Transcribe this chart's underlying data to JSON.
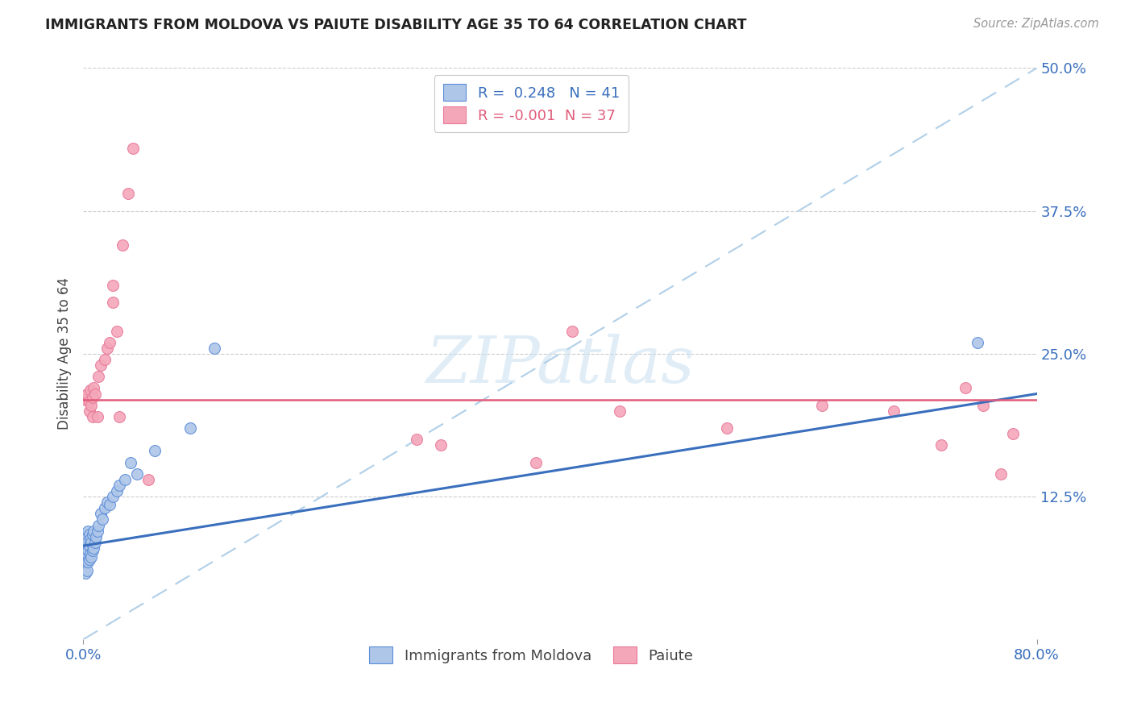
{
  "title": "IMMIGRANTS FROM MOLDOVA VS PAIUTE DISABILITY AGE 35 TO 64 CORRELATION CHART",
  "source": "Source: ZipAtlas.com",
  "ylabel_label": "Disability Age 35 to 64",
  "xmin": 0.0,
  "xmax": 0.8,
  "ymin": 0.0,
  "ymax": 0.5,
  "yticks_right": [
    0.0,
    0.125,
    0.25,
    0.375,
    0.5
  ],
  "ytick_right_labels": [
    "",
    "12.5%",
    "25.0%",
    "37.5%",
    "50.0%"
  ],
  "legend_blue_label": "Immigrants from Moldova",
  "legend_pink_label": "Paiute",
  "R_blue": 0.248,
  "N_blue": 41,
  "R_pink": -0.001,
  "N_pink": 37,
  "blue_fill": "#aec6e8",
  "pink_fill": "#f4a7b9",
  "blue_edge": "#5b8dd9",
  "pink_edge": "#e8799a",
  "blue_line_color": "#3a6fbd",
  "pink_line_color": "#e05c7a",
  "dashed_line_color": "#b0cfe8",
  "watermark": "ZIPatlas",
  "blue_x": [
    0.001,
    0.001,
    0.002,
    0.002,
    0.002,
    0.003,
    0.003,
    0.003,
    0.004,
    0.004,
    0.004,
    0.005,
    0.005,
    0.005,
    0.006,
    0.006,
    0.007,
    0.007,
    0.008,
    0.008,
    0.009,
    0.009,
    0.01,
    0.011,
    0.012,
    0.013,
    0.015,
    0.016,
    0.018,
    0.02,
    0.022,
    0.025,
    0.028,
    0.03,
    0.035,
    0.04,
    0.045,
    0.06,
    0.09,
    0.11,
    0.75
  ],
  "blue_y": [
    0.065,
    0.08,
    0.058,
    0.072,
    0.09,
    0.06,
    0.075,
    0.085,
    0.068,
    0.078,
    0.095,
    0.07,
    0.082,
    0.092,
    0.075,
    0.088,
    0.072,
    0.085,
    0.078,
    0.092,
    0.08,
    0.095,
    0.085,
    0.09,
    0.095,
    0.1,
    0.11,
    0.105,
    0.115,
    0.12,
    0.118,
    0.125,
    0.13,
    0.135,
    0.14,
    0.155,
    0.145,
    0.165,
    0.185,
    0.255,
    0.26
  ],
  "pink_x": [
    0.002,
    0.003,
    0.005,
    0.005,
    0.006,
    0.007,
    0.008,
    0.008,
    0.009,
    0.01,
    0.012,
    0.013,
    0.015,
    0.018,
    0.02,
    0.022,
    0.025,
    0.025,
    0.028,
    0.03,
    0.033,
    0.038,
    0.042,
    0.055,
    0.28,
    0.3,
    0.38,
    0.41,
    0.45,
    0.54,
    0.62,
    0.68,
    0.72,
    0.74,
    0.755,
    0.77,
    0.78
  ],
  "pink_y": [
    0.21,
    0.215,
    0.2,
    0.208,
    0.218,
    0.205,
    0.195,
    0.212,
    0.22,
    0.215,
    0.195,
    0.23,
    0.24,
    0.245,
    0.255,
    0.26,
    0.295,
    0.31,
    0.27,
    0.195,
    0.345,
    0.39,
    0.43,
    0.14,
    0.175,
    0.17,
    0.155,
    0.27,
    0.2,
    0.185,
    0.205,
    0.2,
    0.17,
    0.22,
    0.205,
    0.145,
    0.18
  ],
  "blue_line_x0": 0.0,
  "blue_line_x1": 0.8,
  "blue_line_y0": 0.082,
  "blue_line_y1": 0.215,
  "pink_line_x0": 0.0,
  "pink_line_x1": 0.8,
  "pink_line_y0": 0.21,
  "pink_line_y1": 0.21
}
